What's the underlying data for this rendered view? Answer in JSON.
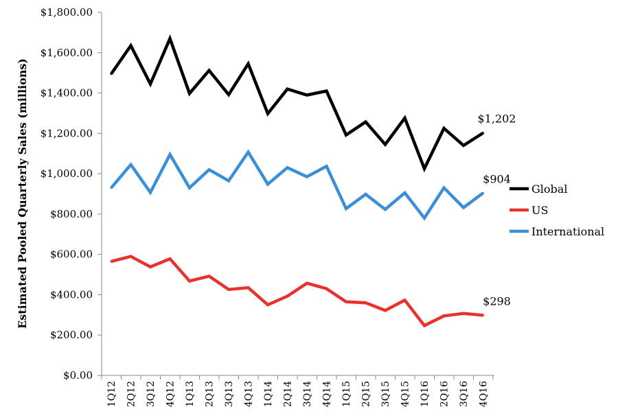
{
  "chart_data": {
    "type": "line",
    "ylabel": "Estimated Pooled Quarterly Sales (millions)",
    "xlabel": "",
    "title": "",
    "ylim": [
      0,
      1800
    ],
    "y_ticks": [
      "$0.00",
      "$200.00",
      "$400.00",
      "$600.00",
      "$800.00",
      "$1,000.00",
      "$1,200.00",
      "$1,400.00",
      "$1,600.00",
      "$1,800.00"
    ],
    "categories": [
      "1Q12",
      "2Q12",
      "3Q12",
      "4Q12",
      "1Q13",
      "2Q13",
      "3Q13",
      "4Q13",
      "1Q14",
      "2Q14",
      "3Q14",
      "4Q14",
      "1Q15",
      "2Q15",
      "3Q15",
      "4Q15",
      "1Q16",
      "2Q16",
      "3Q16",
      "4Q16"
    ],
    "series": [
      {
        "name": "Global",
        "color": "#000000",
        "values": [
          1495,
          1635,
          1445,
          1670,
          1398,
          1512,
          1392,
          1545,
          1298,
          1420,
          1390,
          1410,
          1192,
          1257,
          1145,
          1276,
          1025,
          1225,
          1140,
          1202
        ]
      },
      {
        "name": "US",
        "color": "#e8322d",
        "values": [
          565,
          590,
          538,
          578,
          468,
          492,
          426,
          435,
          350,
          393,
          457,
          430,
          365,
          360,
          322,
          373,
          247,
          295,
          307,
          298
        ]
      },
      {
        "name": "International",
        "color": "#3a8fd6",
        "values": [
          930,
          1045,
          907,
          1095,
          930,
          1020,
          965,
          1107,
          948,
          1030,
          985,
          1037,
          827,
          898,
          823,
          905,
          780,
          930,
          832,
          904
        ]
      }
    ],
    "annotations": [
      {
        "series": "Global",
        "text": "$1,202"
      },
      {
        "series": "International",
        "text": "$904"
      },
      {
        "series": "US",
        "text": "$298"
      }
    ],
    "legend": {
      "position": "right"
    },
    "grid": false
  }
}
